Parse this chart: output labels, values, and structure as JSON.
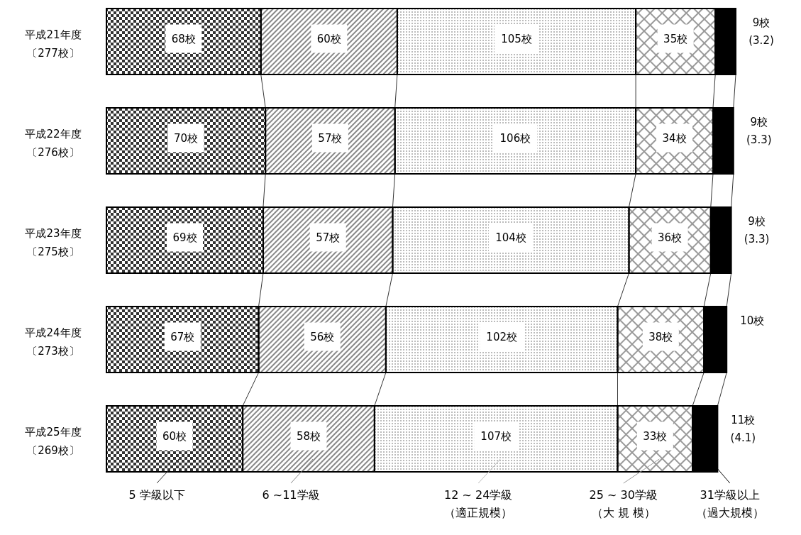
{
  "chart_data": {
    "type": "bar",
    "orientation": "horizontal",
    "stacked": true,
    "xlim": [
      0,
      277
    ],
    "tick_labels": "y",
    "legend": "bottom",
    "categories": [
      "平成21年度〔277校〕",
      "平成22年度〔276校〕",
      "平成23年度〔275校〕",
      "平成24年度〔273校〕",
      "平成25年度〔269校〕"
    ],
    "series": [
      {
        "name": "5 学級以下",
        "color": "#333333",
        "values": [
          68,
          70,
          69,
          67,
          60
        ],
        "value_labels": [
          "68校",
          "70校",
          "69校",
          "67校",
          "60校"
        ]
      },
      {
        "name": "6 ~11学級",
        "color": "#888888",
        "values": [
          60,
          57,
          57,
          56,
          58
        ],
        "value_labels": [
          "60校",
          "57校",
          "57校",
          "56校",
          "58校"
        ]
      },
      {
        "name": "12 ~ 24学級（適正規模）",
        "color": "#bbbbbb",
        "values": [
          105,
          106,
          104,
          102,
          107
        ],
        "value_labels": [
          "105校",
          "106校",
          "104校",
          "102校",
          "107校"
        ]
      },
      {
        "name": "25 ~ 30学級（大 規 模）",
        "color": "#999999",
        "values": [
          35,
          34,
          36,
          38,
          33
        ],
        "value_labels": [
          "35校",
          "34校",
          "36校",
          "38校",
          "33校"
        ]
      },
      {
        "name": "31学級以上（過大規模）",
        "color": "#000000",
        "values": [
          9,
          9,
          9,
          10,
          11
        ],
        "value_labels": [
          "9校\n(3.2)",
          "9校\n(3.3)",
          "9校\n(3.3)",
          "10校",
          "11校\n(4.1)"
        ]
      }
    ]
  }
}
